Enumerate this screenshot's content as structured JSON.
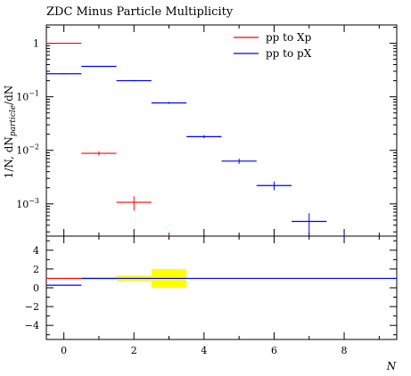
{
  "chart_data": {
    "type": "scatter",
    "title": "ZDC Minus Particle Multiplicity",
    "xlabel": "N",
    "ylabel": "1/N, dN_particle/dN",
    "xlim": [
      -0.5,
      9.5
    ],
    "ylim": [
      0.00025,
      2.2
    ],
    "yscale": "log",
    "x_ticks": [
      0,
      2,
      4,
      6,
      8
    ],
    "y_ticks": [
      {
        "value": 0.001,
        "base": "10",
        "exp": "−3"
      },
      {
        "value": 0.01,
        "base": "10",
        "exp": "−2"
      },
      {
        "value": 0.1,
        "base": "10",
        "exp": "−1"
      },
      {
        "value": 1,
        "base": "1",
        "exp": ""
      }
    ],
    "legend": {
      "position": "top-right"
    },
    "series": [
      {
        "name": "pp to Xp",
        "color": "#ff0000",
        "points": [
          {
            "xlo": -0.5,
            "xhi": 0.5,
            "y": 1.0,
            "err": 0
          },
          {
            "xlo": 0.5,
            "xhi": 1.5,
            "y": 0.0088,
            "err": 0.0008
          },
          {
            "xlo": 1.5,
            "xhi": 2.5,
            "y": 0.00107,
            "err": 0.00032
          }
        ]
      },
      {
        "name": "pp to pX",
        "color": "#0000ff",
        "points": [
          {
            "xlo": -0.5,
            "xhi": 0.5,
            "y": 0.27,
            "err": 0.006
          },
          {
            "xlo": 0.5,
            "xhi": 1.5,
            "y": 0.37,
            "err": 0.006
          },
          {
            "xlo": 1.5,
            "xhi": 2.5,
            "y": 0.2,
            "err": 0.006
          },
          {
            "xlo": 2.5,
            "xhi": 3.5,
            "y": 0.077,
            "err": 0.003
          },
          {
            "xlo": 3.5,
            "xhi": 4.5,
            "y": 0.018,
            "err": 0.0012
          },
          {
            "xlo": 4.5,
            "xhi": 5.5,
            "y": 0.0063,
            "err": 0.0007
          },
          {
            "xlo": 5.5,
            "xhi": 6.5,
            "y": 0.0022,
            "err": 0.0004
          },
          {
            "xlo": 6.5,
            "xhi": 7.5,
            "y": 0.00047,
            "err": 0.0002
          }
        ]
      }
    ],
    "ratio_panel": {
      "ylim": [
        -5.5,
        5.5
      ],
      "y_ticks": [
        {
          "value": -4,
          "label": "−4"
        },
        {
          "value": -2,
          "label": "−2"
        },
        {
          "value": 0,
          "label": "0"
        },
        {
          "value": 2,
          "label": "2"
        },
        {
          "value": 4,
          "label": "4"
        }
      ],
      "reference_line": 1,
      "band_color": "#ffff00",
      "bands": [
        {
          "xlo": 0.5,
          "xhi": 1.5,
          "ylo": 0.85,
          "yhi": 1.15
        },
        {
          "xlo": 1.5,
          "xhi": 2.5,
          "ylo": 0.7,
          "yhi": 1.3
        },
        {
          "xlo": 2.5,
          "xhi": 3.5,
          "ylo": 0.0,
          "yhi": 2.0
        }
      ],
      "ratio_points": [
        {
          "xlo": -0.5,
          "xhi": 0.5,
          "y": 0.27
        }
      ]
    }
  }
}
